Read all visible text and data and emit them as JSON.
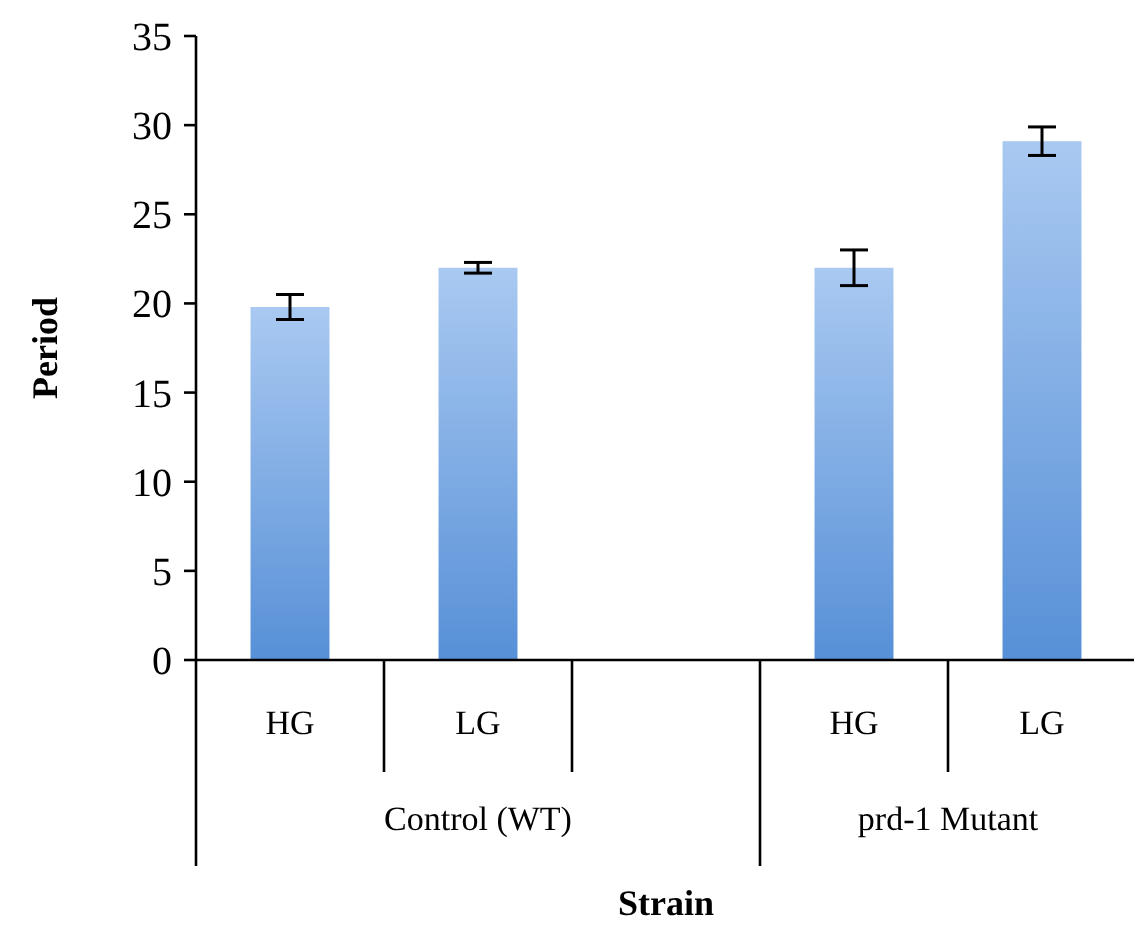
{
  "chart_data": {
    "type": "bar",
    "xlabel": "Strain",
    "ylabel": "Period",
    "categories": [
      "HG",
      "LG",
      null,
      "HG",
      "LG"
    ],
    "values": [
      19.8,
      22.0,
      null,
      22.0,
      29.1
    ],
    "errors": [
      0.7,
      0.3,
      null,
      1.0,
      0.8
    ],
    "color": "#6fa5e8",
    "ylim": [
      0,
      35
    ],
    "yticks": [
      0,
      5,
      10,
      15,
      20,
      25,
      30,
      35
    ],
    "grid": false,
    "annotations": [
      "Control (WT)",
      "prd-1 Mutant"
    ]
  }
}
